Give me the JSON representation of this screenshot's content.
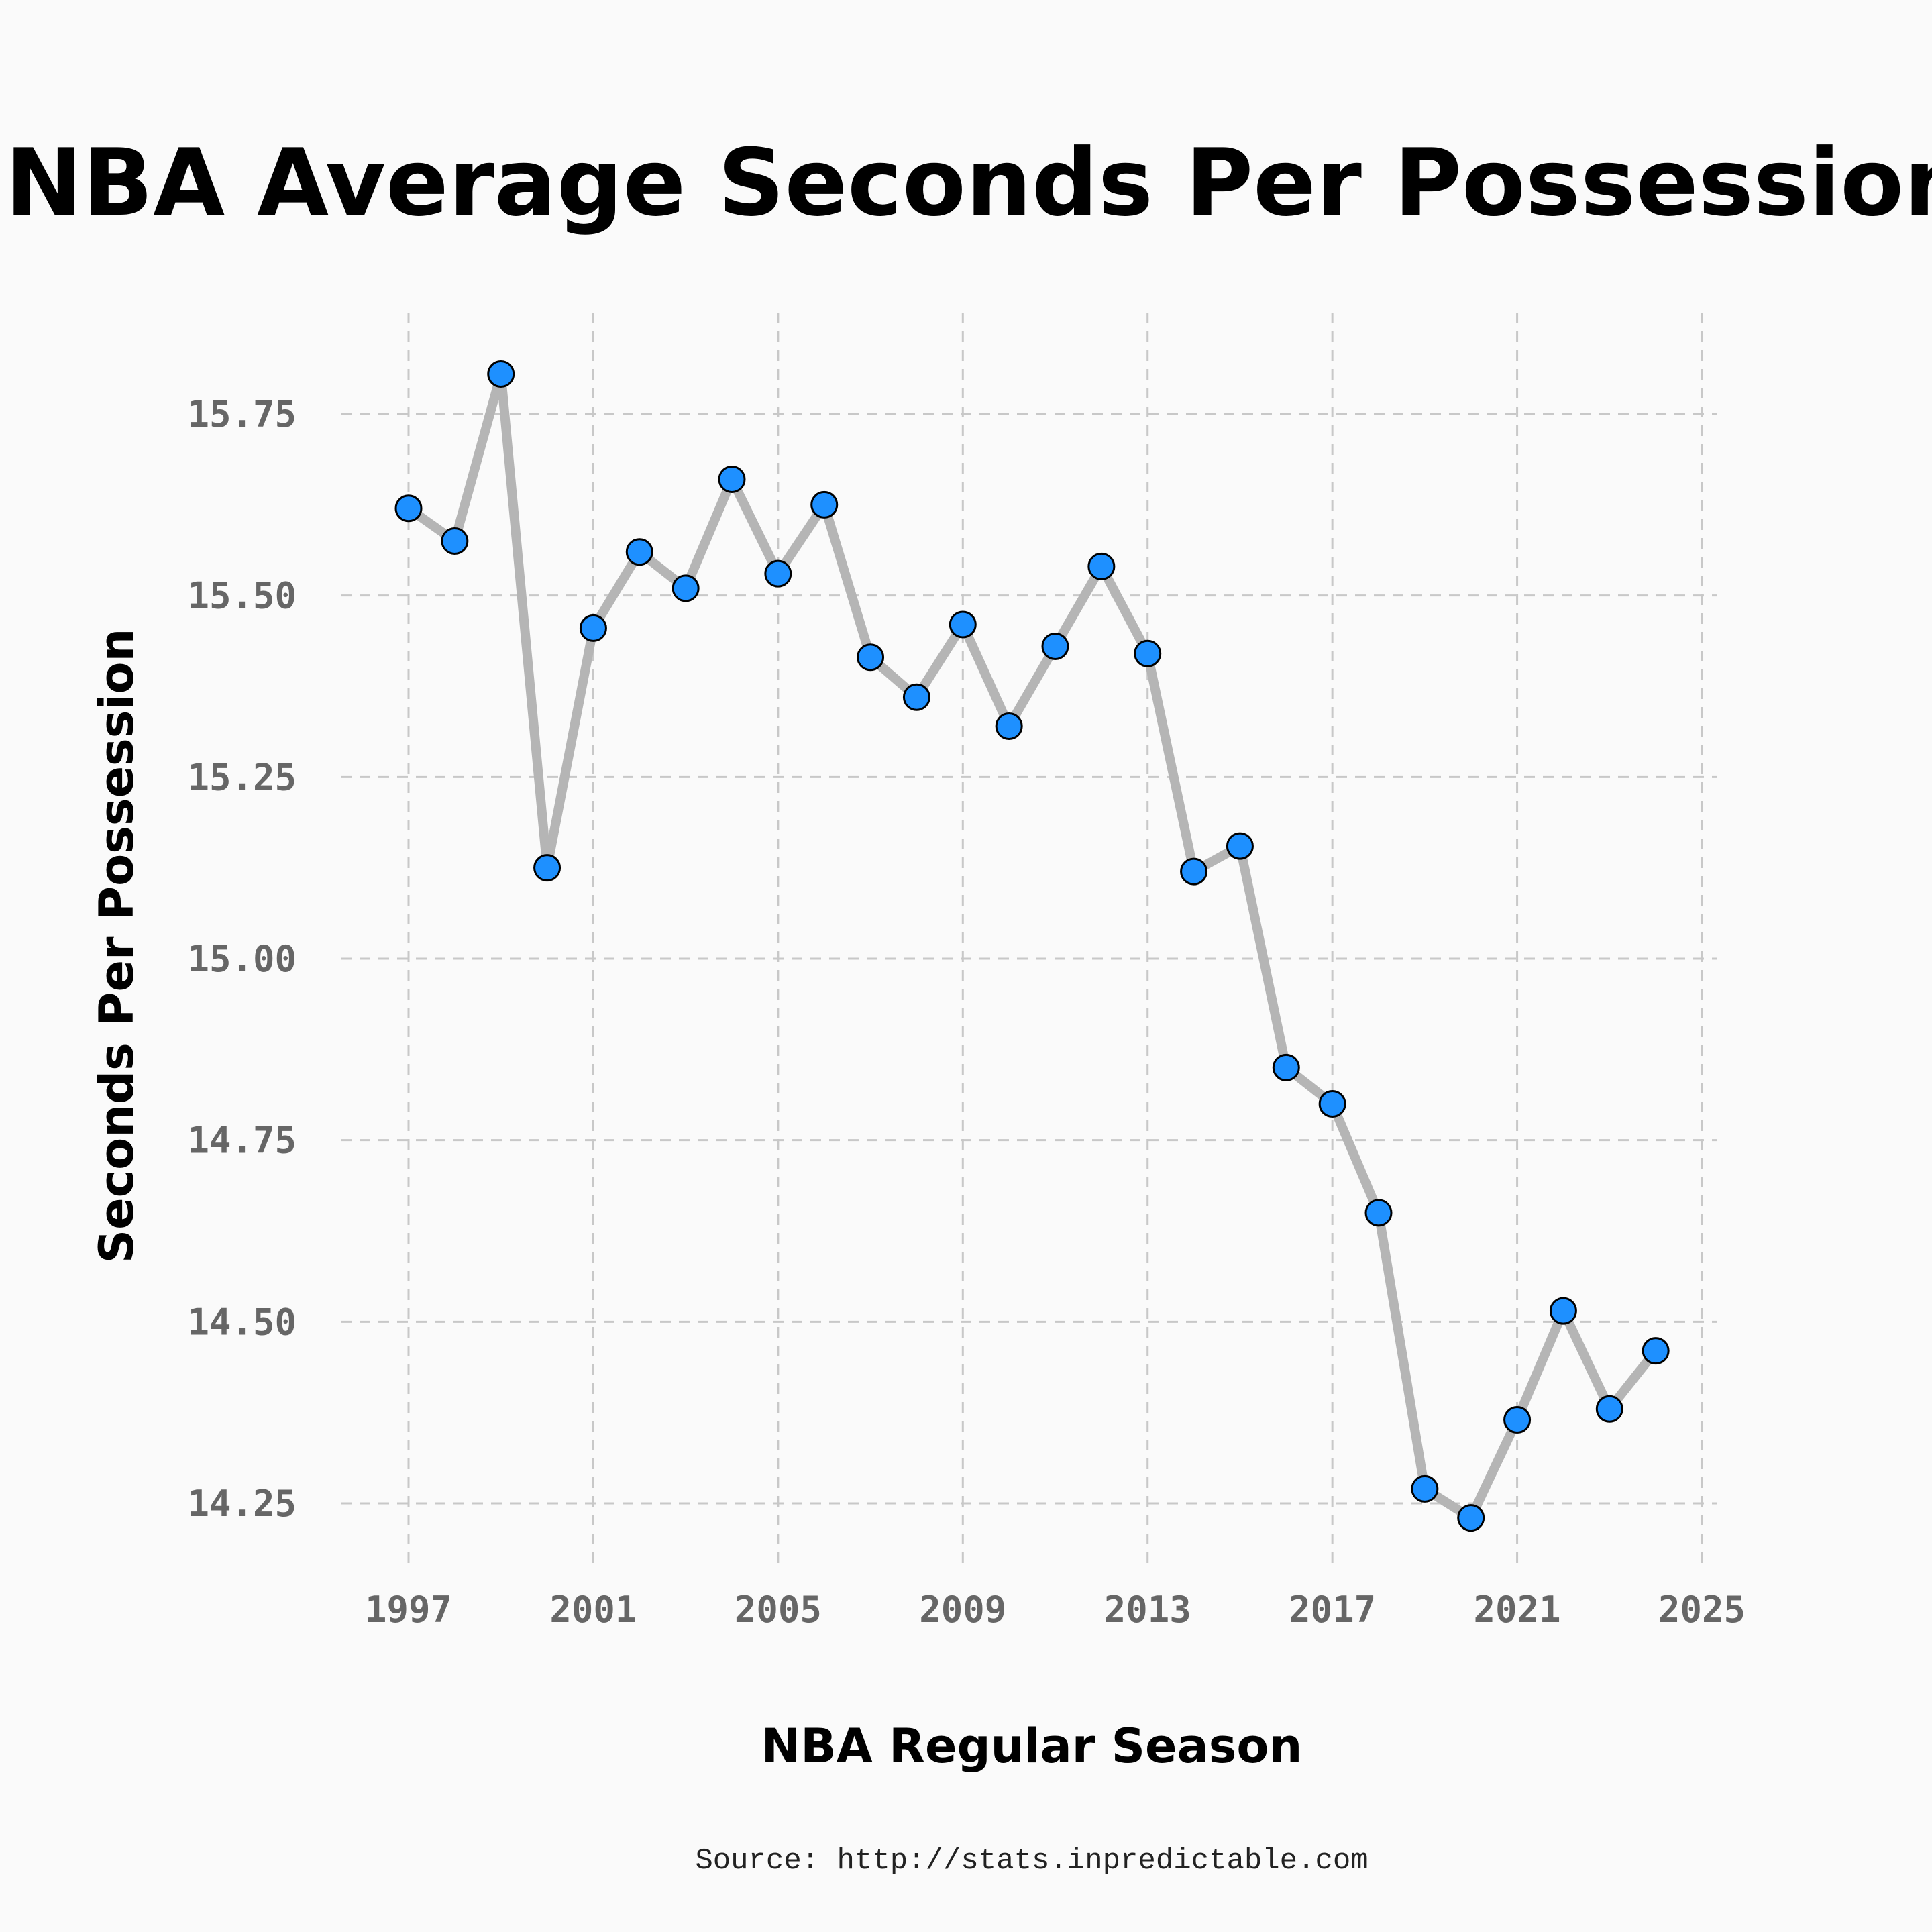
{
  "chart_data": {
    "type": "line",
    "title": "NBA Average Seconds Per Possession",
    "xlabel": "NBA Regular Season",
    "ylabel": "Seconds Per Possession",
    "caption": "Source: http://stats.inpredictable.com",
    "xlim": [
      1997,
      2025
    ],
    "ylim": [
      14.25,
      15.75
    ],
    "x_ticks": [
      1997,
      2001,
      2005,
      2009,
      2013,
      2017,
      2021,
      2025
    ],
    "y_ticks": [
      "14.25",
      "14.50",
      "14.75",
      "15.00",
      "15.25",
      "15.50",
      "15.75"
    ],
    "grid": true,
    "line_color": "#b5b5b5",
    "marker_color": "#1e90ff",
    "series": [
      {
        "x": [
          1997,
          1998,
          1999,
          2000,
          2001,
          2002,
          2003,
          2004,
          2005,
          2006,
          2007,
          2008,
          2009,
          2010,
          2011,
          2012,
          2013,
          2014,
          2015,
          2016,
          2017,
          2018,
          2019,
          2020,
          2021,
          2022,
          2023,
          2024
        ],
        "values": [
          15.62,
          15.575,
          15.805,
          15.125,
          15.455,
          15.56,
          15.51,
          15.66,
          15.53,
          15.625,
          15.415,
          15.36,
          15.46,
          15.32,
          15.43,
          15.54,
          15.42,
          15.12,
          15.155,
          14.85,
          14.8,
          14.65,
          14.27,
          14.23,
          14.365,
          14.515,
          14.38,
          14.46
        ]
      }
    ]
  }
}
